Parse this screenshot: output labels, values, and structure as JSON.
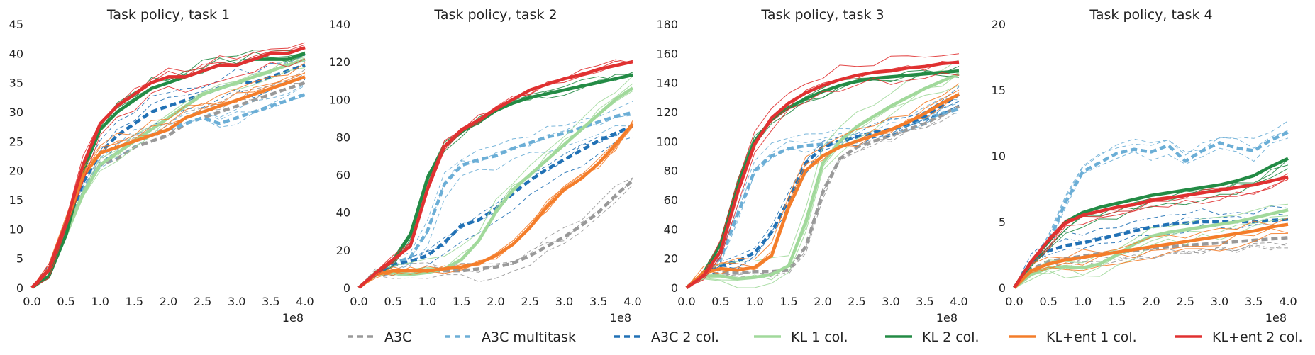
{
  "chart_data": [
    {
      "type": "line",
      "title": "Task policy, task 1",
      "xlim": [
        0.0,
        4.0
      ],
      "ylim": [
        0,
        45
      ],
      "x_offset_label": "1e8",
      "x_ticks": [
        "0.0",
        "0.5",
        "1.0",
        "1.5",
        "2.0",
        "2.5",
        "3.0",
        "3.5",
        "4.0"
      ],
      "y_ticks": [
        "0",
        "5",
        "10",
        "15",
        "20",
        "25",
        "30",
        "35",
        "40",
        "45"
      ],
      "x_tick_values": [
        0,
        0.5,
        1,
        1.5,
        2,
        2.5,
        3,
        3.5,
        4
      ],
      "y_tick_values": [
        0,
        5,
        10,
        15,
        20,
        25,
        30,
        35,
        40,
        45
      ],
      "x": [
        0,
        0.25,
        0.5,
        0.75,
        1.0,
        1.25,
        1.5,
        1.75,
        2.0,
        2.25,
        2.5,
        2.75,
        3.0,
        3.25,
        3.5,
        3.75,
        4.0
      ],
      "series": [
        {
          "name": "A3C",
          "values": [
            0,
            3,
            10,
            17,
            21,
            22,
            24,
            25,
            26,
            28,
            29,
            30,
            31,
            32,
            33,
            34,
            35
          ]
        },
        {
          "name": "A3C multitask",
          "values": [
            0,
            3,
            10,
            17,
            21,
            23,
            25,
            26,
            27,
            28,
            29,
            28,
            29,
            30,
            31,
            32,
            33
          ]
        },
        {
          "name": "A3C 2 col.",
          "values": [
            0,
            3,
            10,
            18,
            23,
            26,
            28,
            30,
            31,
            32,
            33,
            34,
            35,
            35,
            36,
            37,
            38
          ]
        },
        {
          "name": "KL 1 col.",
          "values": [
            0,
            3,
            9,
            16,
            21,
            23,
            25,
            27,
            29,
            31,
            33,
            34,
            35,
            36,
            37,
            38,
            39
          ]
        },
        {
          "name": "KL 2 col.",
          "values": [
            0,
            2,
            9,
            20,
            27,
            30,
            32,
            34,
            35,
            36,
            37,
            38,
            38,
            39,
            39,
            39,
            40
          ]
        },
        {
          "name": "KL+ent 1 col.",
          "values": [
            0,
            3,
            11,
            19,
            23,
            24,
            25,
            26,
            27,
            29,
            30,
            31,
            32,
            33,
            34,
            35,
            36
          ]
        },
        {
          "name": "KL+ent 2 col.",
          "values": [
            0,
            3,
            11,
            21,
            28,
            31,
            33,
            35,
            36,
            36,
            37,
            38,
            38,
            39,
            40,
            40,
            41
          ]
        }
      ]
    },
    {
      "type": "line",
      "title": "Task policy, task 2",
      "xlim": [
        0.0,
        4.0
      ],
      "ylim": [
        0,
        140
      ],
      "x_offset_label": "1e8",
      "x_ticks": [
        "0.0",
        "0.5",
        "1.0",
        "1.5",
        "2.0",
        "2.5",
        "3.0",
        "3.5",
        "4.0"
      ],
      "y_ticks": [
        "0",
        "20",
        "40",
        "60",
        "80",
        "100",
        "120",
        "140"
      ],
      "x_tick_values": [
        0,
        0.5,
        1,
        1.5,
        2,
        2.5,
        3,
        3.5,
        4
      ],
      "y_tick_values": [
        0,
        20,
        40,
        60,
        80,
        100,
        120,
        140
      ],
      "x": [
        0,
        0.25,
        0.5,
        0.75,
        1.0,
        1.25,
        1.5,
        1.75,
        2.0,
        2.25,
        2.5,
        2.75,
        3.0,
        3.25,
        3.5,
        3.75,
        4.0
      ],
      "series": [
        {
          "name": "A3C",
          "values": [
            0,
            7,
            9,
            9,
            9,
            9,
            9,
            10,
            11,
            13,
            17,
            22,
            27,
            33,
            40,
            49,
            57
          ]
        },
        {
          "name": "A3C multitask",
          "values": [
            0,
            8,
            13,
            16,
            30,
            55,
            65,
            68,
            70,
            74,
            77,
            80,
            82,
            85,
            88,
            91,
            93
          ]
        },
        {
          "name": "A3C 2 col.",
          "values": [
            0,
            8,
            12,
            14,
            17,
            24,
            33,
            36,
            42,
            50,
            57,
            63,
            68,
            73,
            78,
            82,
            86
          ]
        },
        {
          "name": "KL 1 col.",
          "values": [
            0,
            7,
            8,
            7,
            8,
            10,
            15,
            25,
            40,
            52,
            60,
            68,
            76,
            84,
            92,
            100,
            106
          ]
        },
        {
          "name": "KL 2 col.",
          "values": [
            0,
            8,
            14,
            28,
            58,
            75,
            83,
            88,
            94,
            98,
            101,
            103,
            105,
            107,
            109,
            111,
            113
          ]
        },
        {
          "name": "KL+ent 1 col.",
          "values": [
            0,
            7,
            9,
            9,
            9,
            10,
            11,
            13,
            17,
            23,
            32,
            43,
            52,
            58,
            66,
            76,
            87
          ]
        },
        {
          "name": "KL+ent 2 col.",
          "values": [
            0,
            8,
            15,
            22,
            52,
            75,
            84,
            89,
            95,
            100,
            105,
            108,
            111,
            113,
            116,
            118,
            120
          ]
        }
      ]
    },
    {
      "type": "line",
      "title": "Task policy, task 3",
      "xlim": [
        0.0,
        4.0
      ],
      "ylim": [
        0,
        180
      ],
      "x_offset_label": "1e8",
      "x_ticks": [
        "0.0",
        "0.5",
        "1.0",
        "1.5",
        "2.0",
        "2.5",
        "3.0",
        "3.5",
        "4.0"
      ],
      "y_ticks": [
        "0",
        "20",
        "40",
        "60",
        "80",
        "100",
        "120",
        "140",
        "160",
        "180"
      ],
      "x_tick_values": [
        0,
        0.5,
        1,
        1.5,
        2,
        2.5,
        3,
        3.5,
        4
      ],
      "y_tick_values": [
        0,
        20,
        40,
        60,
        80,
        100,
        120,
        140,
        160,
        180
      ],
      "x": [
        0,
        0.25,
        0.5,
        0.75,
        1.0,
        1.25,
        1.5,
        1.75,
        2.0,
        2.25,
        2.5,
        2.75,
        3.0,
        3.25,
        3.5,
        3.75,
        4.0
      ],
      "series": [
        {
          "name": "A3C",
          "values": [
            0,
            8,
            10,
            10,
            11,
            11,
            12,
            28,
            65,
            88,
            96,
            100,
            104,
            108,
            112,
            118,
            124
          ]
        },
        {
          "name": "A3C multitask",
          "values": [
            0,
            10,
            20,
            50,
            80,
            90,
            95,
            97,
            98,
            100,
            103,
            106,
            108,
            111,
            115,
            119,
            122
          ]
        },
        {
          "name": "A3C 2 col.",
          "values": [
            0,
            10,
            15,
            18,
            24,
            38,
            60,
            85,
            96,
            100,
            103,
            106,
            108,
            112,
            117,
            124,
            132
          ]
        },
        {
          "name": "KL 1 col.",
          "values": [
            0,
            8,
            8,
            6,
            7,
            9,
            15,
            45,
            85,
            100,
            110,
            117,
            124,
            130,
            136,
            141,
            146
          ]
        },
        {
          "name": "KL 2 col.",
          "values": [
            0,
            10,
            30,
            70,
            100,
            115,
            123,
            129,
            134,
            138,
            141,
            143,
            144,
            145,
            146,
            147,
            148
          ]
        },
        {
          "name": "KL+ent 1 col.",
          "values": [
            0,
            10,
            13,
            12,
            14,
            22,
            55,
            80,
            90,
            96,
            100,
            104,
            108,
            113,
            119,
            126,
            132
          ]
        },
        {
          "name": "KL+ent 2 col.",
          "values": [
            0,
            8,
            25,
            65,
            98,
            116,
            126,
            133,
            138,
            142,
            145,
            147,
            148,
            150,
            151,
            153,
            154
          ]
        }
      ]
    },
    {
      "type": "line",
      "title": "Task policy, task 4",
      "xlim": [
        0.0,
        4.0
      ],
      "ylim": [
        0,
        20
      ],
      "x_offset_label": "1e8",
      "x_ticks": [
        "0.0",
        "0.5",
        "1.0",
        "1.5",
        "2.0",
        "2.5",
        "3.0",
        "3.5",
        "4.0"
      ],
      "y_ticks": [
        "0",
        "5",
        "10",
        "15",
        "20"
      ],
      "x_tick_values": [
        0,
        0.5,
        1,
        1.5,
        2,
        2.5,
        3,
        3.5,
        4
      ],
      "y_tick_values": [
        0,
        5,
        10,
        15,
        20
      ],
      "x": [
        0,
        0.25,
        0.5,
        0.75,
        1.0,
        1.25,
        1.5,
        1.75,
        2.0,
        2.25,
        2.5,
        2.75,
        3.0,
        3.25,
        3.5,
        3.75,
        4.0
      ],
      "series": [
        {
          "name": "A3C",
          "values": [
            0,
            1.4,
            2.0,
            2.2,
            2.4,
            2.6,
            2.7,
            2.8,
            3.0,
            3.1,
            3.2,
            3.3,
            3.4,
            3.5,
            3.6,
            3.7,
            3.8
          ]
        },
        {
          "name": "A3C multitask",
          "values": [
            0,
            2.0,
            3.5,
            6.5,
            8.8,
            9.5,
            10.2,
            10.5,
            10.3,
            10.8,
            9.6,
            10.4,
            11.0,
            10.6,
            10.4,
            11.2,
            11.8
          ]
        },
        {
          "name": "A3C 2 col.",
          "values": [
            0,
            2.0,
            2.8,
            3.2,
            3.4,
            3.7,
            4.0,
            4.3,
            4.6,
            4.8,
            4.9,
            5.0,
            5.0,
            5.0,
            5.0,
            5.1,
            5.2
          ]
        },
        {
          "name": "KL 1 col.",
          "values": [
            0,
            1.0,
            1.5,
            1.6,
            1.5,
            1.8,
            2.5,
            3.3,
            3.9,
            4.2,
            4.4,
            4.6,
            4.8,
            5.0,
            5.3,
            5.6,
            5.9
          ]
        },
        {
          "name": "KL 2 col.",
          "values": [
            0,
            2.0,
            3.5,
            5.0,
            5.7,
            6.1,
            6.4,
            6.7,
            7.0,
            7.2,
            7.4,
            7.6,
            7.8,
            8.1,
            8.5,
            9.2,
            9.8
          ]
        },
        {
          "name": "KL+ent 1 col.",
          "values": [
            0,
            1.3,
            1.8,
            2.1,
            2.3,
            2.5,
            2.7,
            2.9,
            3.1,
            3.3,
            3.5,
            3.7,
            3.9,
            4.1,
            4.3,
            4.6,
            4.8
          ]
        },
        {
          "name": "KL+ent 2 col.",
          "values": [
            0,
            2.0,
            3.6,
            4.9,
            5.5,
            5.8,
            6.1,
            6.3,
            6.6,
            6.8,
            7.0,
            7.2,
            7.4,
            7.6,
            7.8,
            8.1,
            8.4
          ]
        }
      ]
    }
  ],
  "legend": {
    "placement": "bottom",
    "items": [
      {
        "label": "A3C",
        "color": "#999999",
        "dash": true
      },
      {
        "label": "A3C multitask",
        "color": "#6baed6",
        "dash": true
      },
      {
        "label": "A3C 2 col.",
        "color": "#2171b5",
        "dash": true
      },
      {
        "label": "KL 1 col.",
        "color": "#a1d99b",
        "dash": false
      },
      {
        "label": "KL 2 col.",
        "color": "#238b45",
        "dash": false
      },
      {
        "label": "KL+ent 1 col.",
        "color": "#f47d2a",
        "dash": false
      },
      {
        "label": "KL+ent 2 col.",
        "color": "#e03131",
        "dash": false
      }
    ]
  }
}
